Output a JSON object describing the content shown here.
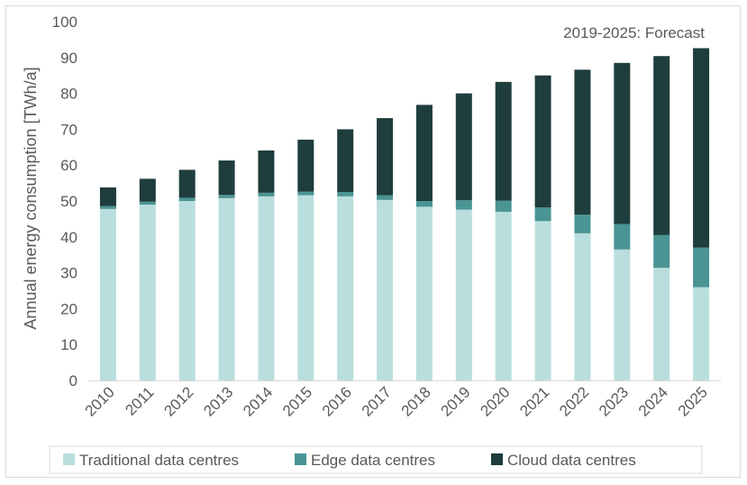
{
  "chart_data": {
    "type": "bar",
    "stacked": true,
    "ylabel": "Annual energy consumption [TWh/a]",
    "xlabel": "",
    "ylim": [
      0,
      100
    ],
    "yticks": [
      0,
      10,
      20,
      30,
      40,
      50,
      60,
      70,
      80,
      90,
      100
    ],
    "grid": false,
    "legend_position": "bottom",
    "annotation": "2019-2025: Forecast",
    "categories": [
      "2010",
      "2011",
      "2012",
      "2013",
      "2014",
      "2015",
      "2016",
      "2017",
      "2018",
      "2019",
      "2020",
      "2021",
      "2022",
      "2023",
      "2024",
      "2025"
    ],
    "series": [
      {
        "name": "Traditional data centres",
        "color": "#b9dedd",
        "values": [
          47.8,
          49.0,
          50.0,
          50.8,
          51.3,
          51.6,
          51.3,
          50.3,
          48.4,
          47.6,
          47.0,
          44.4,
          41.0,
          36.5,
          31.4,
          26.0
        ]
      },
      {
        "name": "Edge data centres",
        "color": "#4a9494",
        "values": [
          0.8,
          0.8,
          0.9,
          0.9,
          1.0,
          1.0,
          1.2,
          1.3,
          1.6,
          2.6,
          3.1,
          3.8,
          5.2,
          7.1,
          9.1,
          11.0
        ]
      },
      {
        "name": "Cloud data centres",
        "color": "#1f3d3d",
        "values": [
          5.2,
          6.4,
          7.8,
          9.6,
          11.8,
          14.5,
          17.5,
          21.5,
          26.8,
          29.8,
          33.1,
          36.8,
          40.4,
          44.9,
          49.9,
          55.6
        ]
      }
    ]
  }
}
